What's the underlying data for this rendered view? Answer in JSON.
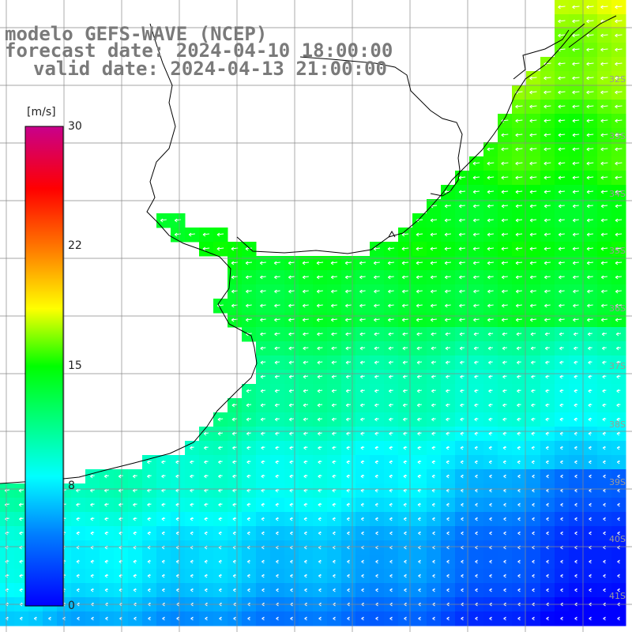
{
  "title": {
    "line1": "modelo GEFS-WAVE (NCEP)",
    "line2": "forecast date: 2024-04-10 18:00:00",
    "line3": "valid date: 2024-04-13 21:00:00"
  },
  "colorbar": {
    "unit": "[m/s]",
    "ticks": [
      "30",
      "22",
      "15",
      "8",
      "0"
    ],
    "tick_values": [
      30,
      22,
      15,
      8,
      0
    ],
    "range": [
      0,
      30
    ]
  },
  "lat_labels": [
    "32S",
    "33S",
    "34S",
    "35S",
    "36S",
    "37S",
    "38S",
    "39S",
    "40S",
    "41S"
  ],
  "colors": {
    "land": "#ffffff",
    "coast": "#000000",
    "grid": "#888888",
    "title_text": "#7a7a7a",
    "arrow": "#ffffff"
  }
}
